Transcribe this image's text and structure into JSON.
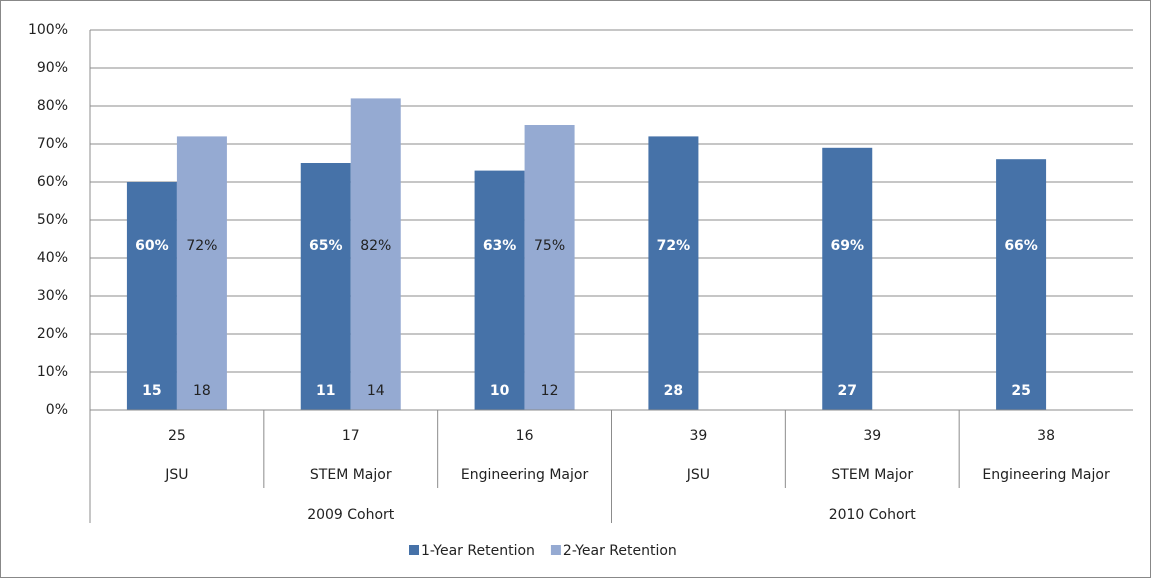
{
  "chart_data": {
    "type": "bar",
    "categories": [
      "JSU",
      "STEM Major",
      "Engineering Major",
      "JSU",
      "STEM Major",
      "Engineering Major"
    ],
    "category_counts": [
      25,
      17,
      16,
      39,
      39,
      38
    ],
    "cohorts": [
      "2009 Cohort",
      "2010 Cohort"
    ],
    "series": [
      {
        "name": "1-Year Retention",
        "color": "#4672a8",
        "values": [
          60,
          65,
          63,
          72,
          69,
          66
        ],
        "value_labels": [
          "60%",
          "65%",
          "63%",
          "72%",
          "69%",
          "66%"
        ],
        "counts": [
          15,
          11,
          10,
          28,
          27,
          25
        ]
      },
      {
        "name": "2-Year Retention",
        "color": "#95aad2",
        "values": [
          72,
          82,
          75,
          null,
          null,
          null
        ],
        "value_labels": [
          "72%",
          "82%",
          "75%",
          null,
          null,
          null
        ],
        "counts": [
          18,
          14,
          12,
          null,
          null,
          null
        ]
      }
    ],
    "ylim": [
      0,
      100
    ],
    "yticks": [
      {
        "value": 0,
        "label": "0%"
      },
      {
        "value": 10,
        "label": "10%"
      },
      {
        "value": 20,
        "label": "20%"
      },
      {
        "value": 30,
        "label": "30%"
      },
      {
        "value": 40,
        "label": "40%"
      },
      {
        "value": 50,
        "label": "50%"
      },
      {
        "value": 60,
        "label": "60%"
      },
      {
        "value": 70,
        "label": "70%"
      },
      {
        "value": 80,
        "label": "80%"
      },
      {
        "value": 90,
        "label": "90%"
      },
      {
        "value": 100,
        "label": "100%"
      }
    ],
    "grid": true,
    "legend": "bottom"
  }
}
